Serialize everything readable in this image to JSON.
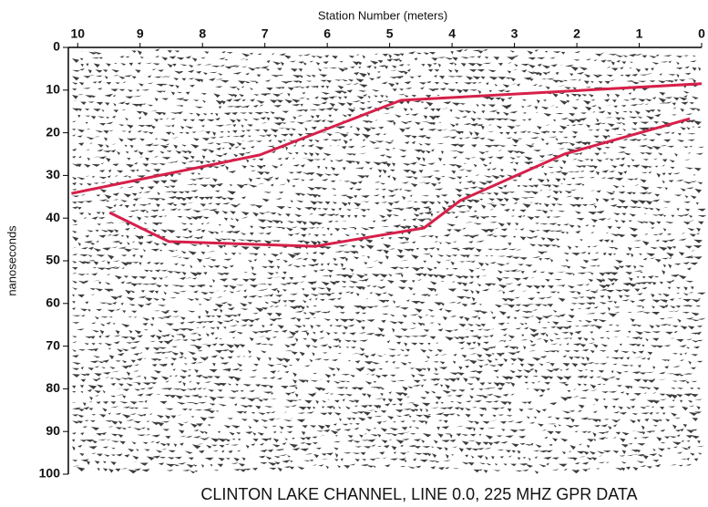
{
  "chart_data": {
    "type": "line",
    "title": "CLINTON LAKE CHANNEL, LINE 0.0, 225 MHZ GPR DATA",
    "x_label": "Station Number (meters)",
    "y_label": "nanoseconds",
    "xlim": [
      10.15,
      0
    ],
    "xticks": [
      10,
      9,
      8,
      7,
      6,
      5,
      4,
      3,
      2,
      1,
      0
    ],
    "ylim": [
      0,
      100
    ],
    "yticks": [
      0,
      10,
      20,
      30,
      40,
      50,
      60,
      70,
      80,
      90,
      100
    ],
    "y_inverted": true,
    "series": [
      {
        "color": "#d6204a",
        "x": [
          10.1,
          7.08,
          4.82,
          0
        ],
        "values": [
          34.2,
          25.2,
          12.4,
          8.5
        ]
      },
      {
        "color": "#d6204a",
        "x": [
          9.49,
          8.54,
          6.2,
          4.45,
          3.87,
          2.2,
          0.19
        ],
        "values": [
          38.7,
          45.5,
          46.6,
          42.3,
          35.9,
          25,
          16.7
        ]
      }
    ]
  }
}
